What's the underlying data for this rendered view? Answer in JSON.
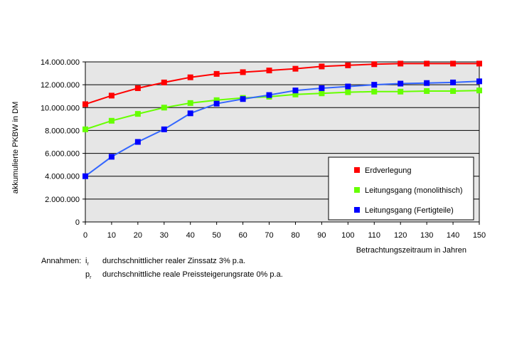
{
  "chart_data": {
    "type": "line",
    "xlabel": "Betrachtungszeitraum in Jahren",
    "ylabel": "akkumulierte PKBW in DM",
    "x": [
      0,
      10,
      20,
      30,
      40,
      50,
      60,
      70,
      80,
      90,
      100,
      110,
      120,
      130,
      140,
      150
    ],
    "xlim": [
      0,
      150
    ],
    "ylim": [
      0,
      14000000
    ],
    "yticks": [
      0,
      2000000,
      4000000,
      6000000,
      8000000,
      10000000,
      12000000,
      14000000
    ],
    "ytick_labels": [
      "0",
      "2.000.000",
      "4.000.000",
      "6.000.000",
      "8.000.000",
      "10.000.000",
      "12.000.000",
      "14.000.000"
    ],
    "xtick_labels": [
      "0",
      "10",
      "20",
      "30",
      "40",
      "50",
      "60",
      "70",
      "80",
      "90",
      "100",
      "110",
      "120",
      "130",
      "140",
      "150"
    ],
    "grid": "horizontal",
    "legend_position": "bottom-right",
    "series": [
      {
        "name": "Erdverlegung",
        "color": "#ff0000",
        "marker": "square",
        "values": [
          10300000,
          11050000,
          11700000,
          12200000,
          12650000,
          12950000,
          13100000,
          13250000,
          13400000,
          13600000,
          13700000,
          13800000,
          13850000,
          13850000,
          13850000,
          13850000
        ]
      },
      {
        "name": "Leitungsgang (monolithisch)",
        "color": "#66ff00",
        "marker": "square",
        "values": [
          8100000,
          8850000,
          9450000,
          10000000,
          10400000,
          10650000,
          10850000,
          10950000,
          11150000,
          11250000,
          11350000,
          11400000,
          11400000,
          11450000,
          11450000,
          11500000
        ]
      },
      {
        "name": "Leitungsgang (Fertigteile)",
        "color": "#0000ff",
        "line_color": "#3366ff",
        "marker": "square",
        "values": [
          4000000,
          5700000,
          7000000,
          8100000,
          9500000,
          10350000,
          10750000,
          11100000,
          11500000,
          11700000,
          11850000,
          12000000,
          12100000,
          12150000,
          12200000,
          12300000
        ]
      }
    ]
  },
  "notes": {
    "prefix": "Annahmen:",
    "rows": [
      {
        "sym": "i",
        "sub": "r",
        "text": "durchschnittlicher realer Zinssatz 3% p.a."
      },
      {
        "sym": "p",
        "sub": "r",
        "text": "durchschnittliche reale Preissteigerungsrate 0% p.a."
      }
    ]
  }
}
